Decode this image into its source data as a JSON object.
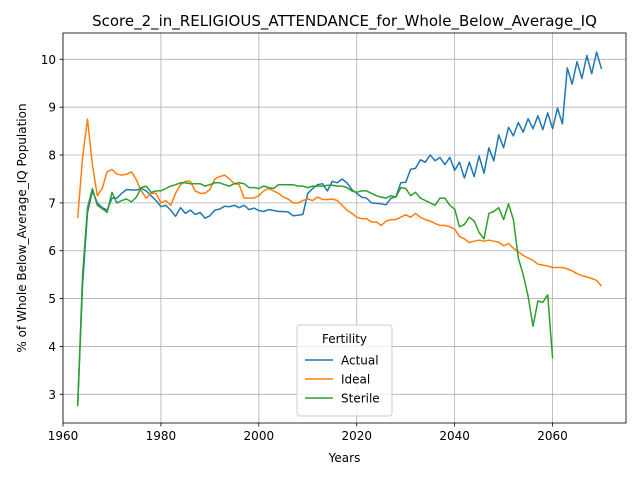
{
  "chart_data": {
    "type": "line",
    "title": "Score_2_in_RELIGIOUS_ATTENDANCE_for_Whole_Below_Average_IQ",
    "xlabel": "Years",
    "ylabel": "% of Whole Below_Average_IQ Population",
    "xlim": [
      1960,
      2075
    ],
    "ylim": [
      2.4,
      10.55
    ],
    "xticks": [
      1960,
      1980,
      2000,
      2020,
      2040,
      2060
    ],
    "yticks": [
      3,
      4,
      5,
      6,
      7,
      8,
      9,
      10
    ],
    "grid": true,
    "legend": {
      "title": "Fertility",
      "placement": "lower center"
    },
    "series": [
      {
        "name": "Actual",
        "color": "#1f77b4",
        "x": [
          1963,
          1964,
          1965,
          1966,
          1967,
          1968,
          1969,
          1970,
          1971,
          1972,
          1973,
          1974,
          1975,
          1976,
          1977,
          1978,
          1979,
          1980,
          1981,
          1982,
          1983,
          1984,
          1985,
          1986,
          1987,
          1988,
          1989,
          1990,
          1991,
          1992,
          1993,
          1994,
          1995,
          1996,
          1997,
          1998,
          1999,
          2000,
          2001,
          2002,
          2003,
          2004,
          2005,
          2006,
          2007,
          2008,
          2009,
          2010,
          2011,
          2012,
          2013,
          2014,
          2015,
          2016,
          2017,
          2018,
          2019,
          2020,
          2021,
          2022,
          2023,
          2024,
          2025,
          2026,
          2027,
          2028,
          2029,
          2030,
          2031,
          2032,
          2033,
          2034,
          2035,
          2036,
          2037,
          2038,
          2039,
          2040,
          2041,
          2042,
          2043,
          2044,
          2045,
          2046,
          2047,
          2048,
          2049,
          2050,
          2051,
          2052,
          2053,
          2054,
          2055,
          2056,
          2057,
          2058,
          2059,
          2060,
          2061,
          2062,
          2063,
          2064,
          2065,
          2066,
          2067,
          2068,
          2069,
          2070
        ],
        "y": [
          2.78,
          5.3,
          6.8,
          7.25,
          7.0,
          6.9,
          6.85,
          7.1,
          7.1,
          7.2,
          7.28,
          7.27,
          7.27,
          7.3,
          7.25,
          7.15,
          7.05,
          6.92,
          6.95,
          6.85,
          6.72,
          6.9,
          6.78,
          6.85,
          6.76,
          6.8,
          6.68,
          6.73,
          6.85,
          6.87,
          6.93,
          6.92,
          6.95,
          6.9,
          6.95,
          6.86,
          6.89,
          6.84,
          6.82,
          6.86,
          6.84,
          6.82,
          6.82,
          6.81,
          6.73,
          6.74,
          6.76,
          7.2,
          7.3,
          7.38,
          7.4,
          7.25,
          7.45,
          7.42,
          7.5,
          7.42,
          7.28,
          7.2,
          7.12,
          7.1,
          7.0,
          6.99,
          6.98,
          6.96,
          7.1,
          7.13,
          7.42,
          7.43,
          7.7,
          7.72,
          7.9,
          7.85,
          8.0,
          7.88,
          7.95,
          7.8,
          7.95,
          7.68,
          7.85,
          7.52,
          7.85,
          7.55,
          7.98,
          7.62,
          8.15,
          7.88,
          8.42,
          8.15,
          8.58,
          8.4,
          8.68,
          8.48,
          8.76,
          8.55,
          8.82,
          8.53,
          8.88,
          8.55,
          8.98,
          8.65,
          9.82,
          9.48,
          9.95,
          9.6,
          10.08,
          9.7,
          10.15,
          9.8
        ]
      },
      {
        "name": "Ideal",
        "color": "#ff7f0e",
        "x": [
          1963,
          1964,
          1965,
          1966,
          1967,
          1968,
          1969,
          1970,
          1971,
          1972,
          1973,
          1974,
          1975,
          1976,
          1977,
          1978,
          1979,
          1980,
          1981,
          1982,
          1983,
          1984,
          1985,
          1986,
          1987,
          1988,
          1989,
          1990,
          1991,
          1992,
          1993,
          1994,
          1995,
          1996,
          1997,
          1998,
          1999,
          2000,
          2001,
          2002,
          2003,
          2004,
          2005,
          2006,
          2007,
          2008,
          2009,
          2010,
          2011,
          2012,
          2013,
          2014,
          2015,
          2016,
          2017,
          2018,
          2019,
          2020,
          2021,
          2022,
          2023,
          2024,
          2025,
          2026,
          2027,
          2028,
          2029,
          2030,
          2031,
          2032,
          2033,
          2034,
          2035,
          2036,
          2037,
          2038,
          2039,
          2040,
          2041,
          2042,
          2043,
          2044,
          2045,
          2046,
          2047,
          2048,
          2049,
          2050,
          2051,
          2052,
          2053,
          2054,
          2055,
          2056,
          2057,
          2058,
          2059,
          2060,
          2061,
          2062,
          2063,
          2064,
          2065,
          2066,
          2067,
          2068,
          2069,
          2070
        ],
        "y": [
          6.68,
          7.95,
          8.75,
          7.8,
          7.15,
          7.3,
          7.65,
          7.7,
          7.6,
          7.58,
          7.6,
          7.65,
          7.48,
          7.25,
          7.1,
          7.2,
          7.2,
          7.0,
          7.05,
          6.95,
          7.2,
          7.38,
          7.45,
          7.45,
          7.25,
          7.2,
          7.2,
          7.28,
          7.5,
          7.55,
          7.58,
          7.5,
          7.4,
          7.38,
          7.1,
          7.1,
          7.1,
          7.15,
          7.25,
          7.3,
          7.25,
          7.2,
          7.12,
          7.08,
          7.0,
          7.0,
          7.05,
          7.08,
          7.05,
          7.12,
          7.07,
          7.07,
          7.08,
          7.05,
          6.95,
          6.85,
          6.78,
          6.7,
          6.67,
          6.67,
          6.6,
          6.6,
          6.53,
          6.62,
          6.65,
          6.65,
          6.7,
          6.75,
          6.7,
          6.78,
          6.7,
          6.65,
          6.62,
          6.57,
          6.53,
          6.53,
          6.5,
          6.45,
          6.3,
          6.25,
          6.17,
          6.2,
          6.22,
          6.2,
          6.22,
          6.2,
          6.18,
          6.1,
          6.15,
          6.05,
          5.98,
          5.9,
          5.85,
          5.8,
          5.72,
          5.7,
          5.68,
          5.65,
          5.65,
          5.65,
          5.62,
          5.58,
          5.52,
          5.48,
          5.45,
          5.42,
          5.38,
          5.26
        ]
      },
      {
        "name": "Sterile",
        "color": "#2ca02c",
        "x": [
          1963,
          1964,
          1965,
          1966,
          1967,
          1968,
          1969,
          1970,
          1971,
          1972,
          1973,
          1974,
          1975,
          1976,
          1977,
          1978,
          1979,
          1980,
          1981,
          1982,
          1983,
          1984,
          1985,
          1986,
          1987,
          1988,
          1989,
          1990,
          1991,
          1992,
          1993,
          1994,
          1995,
          1996,
          1997,
          1998,
          1999,
          2000,
          2001,
          2002,
          2003,
          2004,
          2005,
          2006,
          2007,
          2008,
          2009,
          2010,
          2011,
          2012,
          2013,
          2014,
          2015,
          2016,
          2017,
          2018,
          2019,
          2020,
          2021,
          2022,
          2023,
          2024,
          2025,
          2026,
          2027,
          2028,
          2029,
          2030,
          2031,
          2032,
          2033,
          2034,
          2035,
          2036,
          2037,
          2038,
          2039,
          2040,
          2041,
          2042,
          2043,
          2044,
          2045,
          2046,
          2047,
          2048,
          2049,
          2050,
          2051,
          2052,
          2053,
          2054,
          2055,
          2056,
          2057,
          2058,
          2059,
          2060
        ],
        "y": [
          2.75,
          5.5,
          6.9,
          7.3,
          6.95,
          6.88,
          6.8,
          7.22,
          7.0,
          7.05,
          7.08,
          7.02,
          7.12,
          7.32,
          7.35,
          7.22,
          7.25,
          7.25,
          7.3,
          7.35,
          7.38,
          7.42,
          7.42,
          7.4,
          7.4,
          7.4,
          7.35,
          7.38,
          7.42,
          7.42,
          7.38,
          7.35,
          7.4,
          7.42,
          7.4,
          7.32,
          7.32,
          7.3,
          7.35,
          7.32,
          7.3,
          7.38,
          7.38,
          7.38,
          7.38,
          7.35,
          7.35,
          7.32,
          7.35,
          7.35,
          7.35,
          7.37,
          7.37,
          7.35,
          7.35,
          7.32,
          7.25,
          7.22,
          7.25,
          7.25,
          7.2,
          7.15,
          7.12,
          7.1,
          7.15,
          7.12,
          7.32,
          7.3,
          7.15,
          7.22,
          7.1,
          7.05,
          7.0,
          6.95,
          7.1,
          7.1,
          6.95,
          6.87,
          6.5,
          6.55,
          6.7,
          6.62,
          6.38,
          6.25,
          6.78,
          6.82,
          6.9,
          6.65,
          6.98,
          6.65,
          5.85,
          5.5,
          5.05,
          4.42,
          4.95,
          4.92,
          5.08,
          3.75
        ]
      }
    ]
  }
}
